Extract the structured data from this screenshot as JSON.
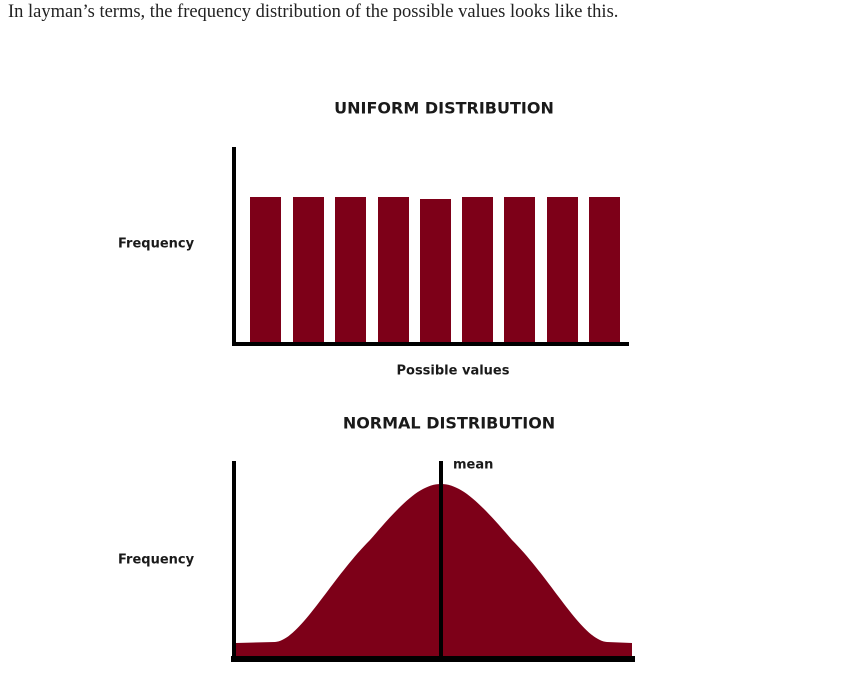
{
  "paragraph": "In layman’s terms, the frequency distribution of the possible values looks like this.",
  "figure": {
    "uniform": {
      "title": "UNIFORM DISTRIBUTION",
      "y_label": "Frequency",
      "x_label": "Possible values"
    },
    "normal": {
      "title": "NORMAL DISTRIBUTION",
      "y_label": "Frequency",
      "marker_label": "mean"
    }
  }
}
